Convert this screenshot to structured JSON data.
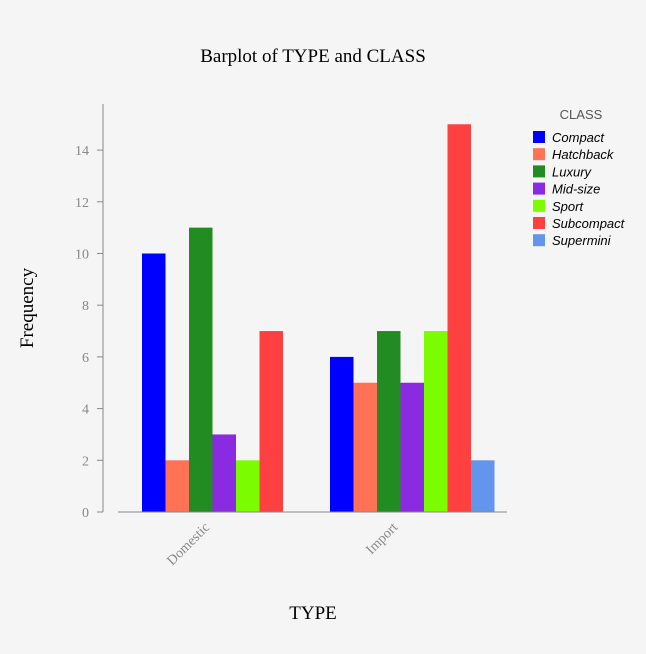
{
  "chart_data": {
    "type": "bar",
    "title": "Barplot of TYPE and CLASS",
    "xlabel": "TYPE",
    "ylabel": "Frequency",
    "categories": [
      "Domestic",
      "Import"
    ],
    "ylim": [
      0,
      15.5
    ],
    "yticks": [
      0,
      2,
      4,
      6,
      8,
      10,
      12,
      14
    ],
    "legend_title": "CLASS",
    "legend_position": "top-right",
    "grid": false,
    "series": [
      {
        "name": "Compact",
        "color": "#0000ff",
        "values": [
          10,
          6
        ]
      },
      {
        "name": "Hatchback",
        "color": "#ff7256",
        "values": [
          2,
          5
        ]
      },
      {
        "name": "Luxury",
        "color": "#228b22",
        "values": [
          11,
          7
        ]
      },
      {
        "name": "Mid-size",
        "color": "#8a2be2",
        "values": [
          3,
          5
        ]
      },
      {
        "name": "Sport",
        "color": "#7cfc00",
        "values": [
          2,
          7
        ]
      },
      {
        "name": "Subcompact",
        "color": "#ff4040",
        "values": [
          7,
          15
        ]
      },
      {
        "name": "Supermini",
        "color": "#6495ed",
        "values": [
          0,
          2
        ]
      }
    ]
  }
}
